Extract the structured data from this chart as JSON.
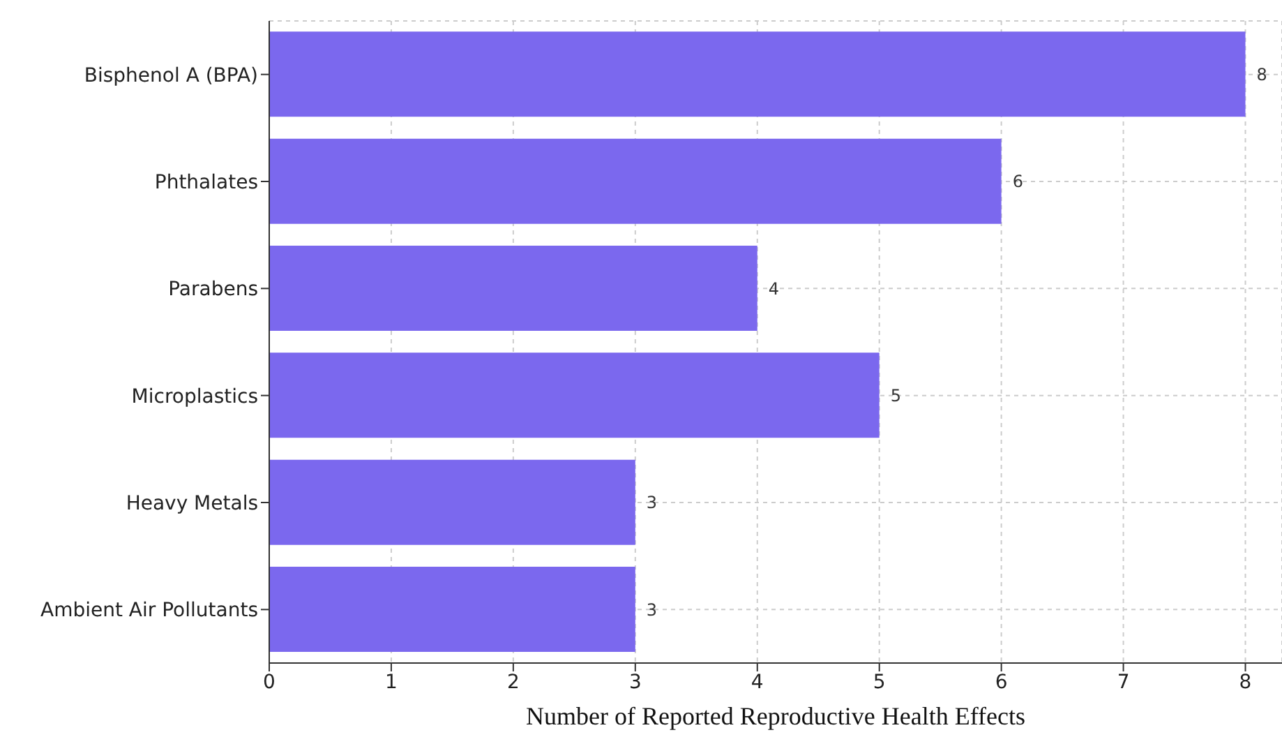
{
  "chart_data": {
    "type": "bar",
    "orientation": "horizontal",
    "xlabel": "Number of Reported Reproductive Health Effects",
    "categories": [
      "Bisphenol A (BPA)",
      "Phthalates",
      "Parabens",
      "Microplastics",
      "Heavy Metals",
      "Ambient Air Pollutants"
    ],
    "values": [
      8,
      6,
      4,
      5,
      3,
      3
    ],
    "color": "#7b68ee",
    "xlim": [
      0,
      8.3
    ],
    "xticks": [
      0,
      1,
      2,
      3,
      4,
      5,
      6,
      7,
      8
    ],
    "grid": true,
    "data_labels": true
  }
}
